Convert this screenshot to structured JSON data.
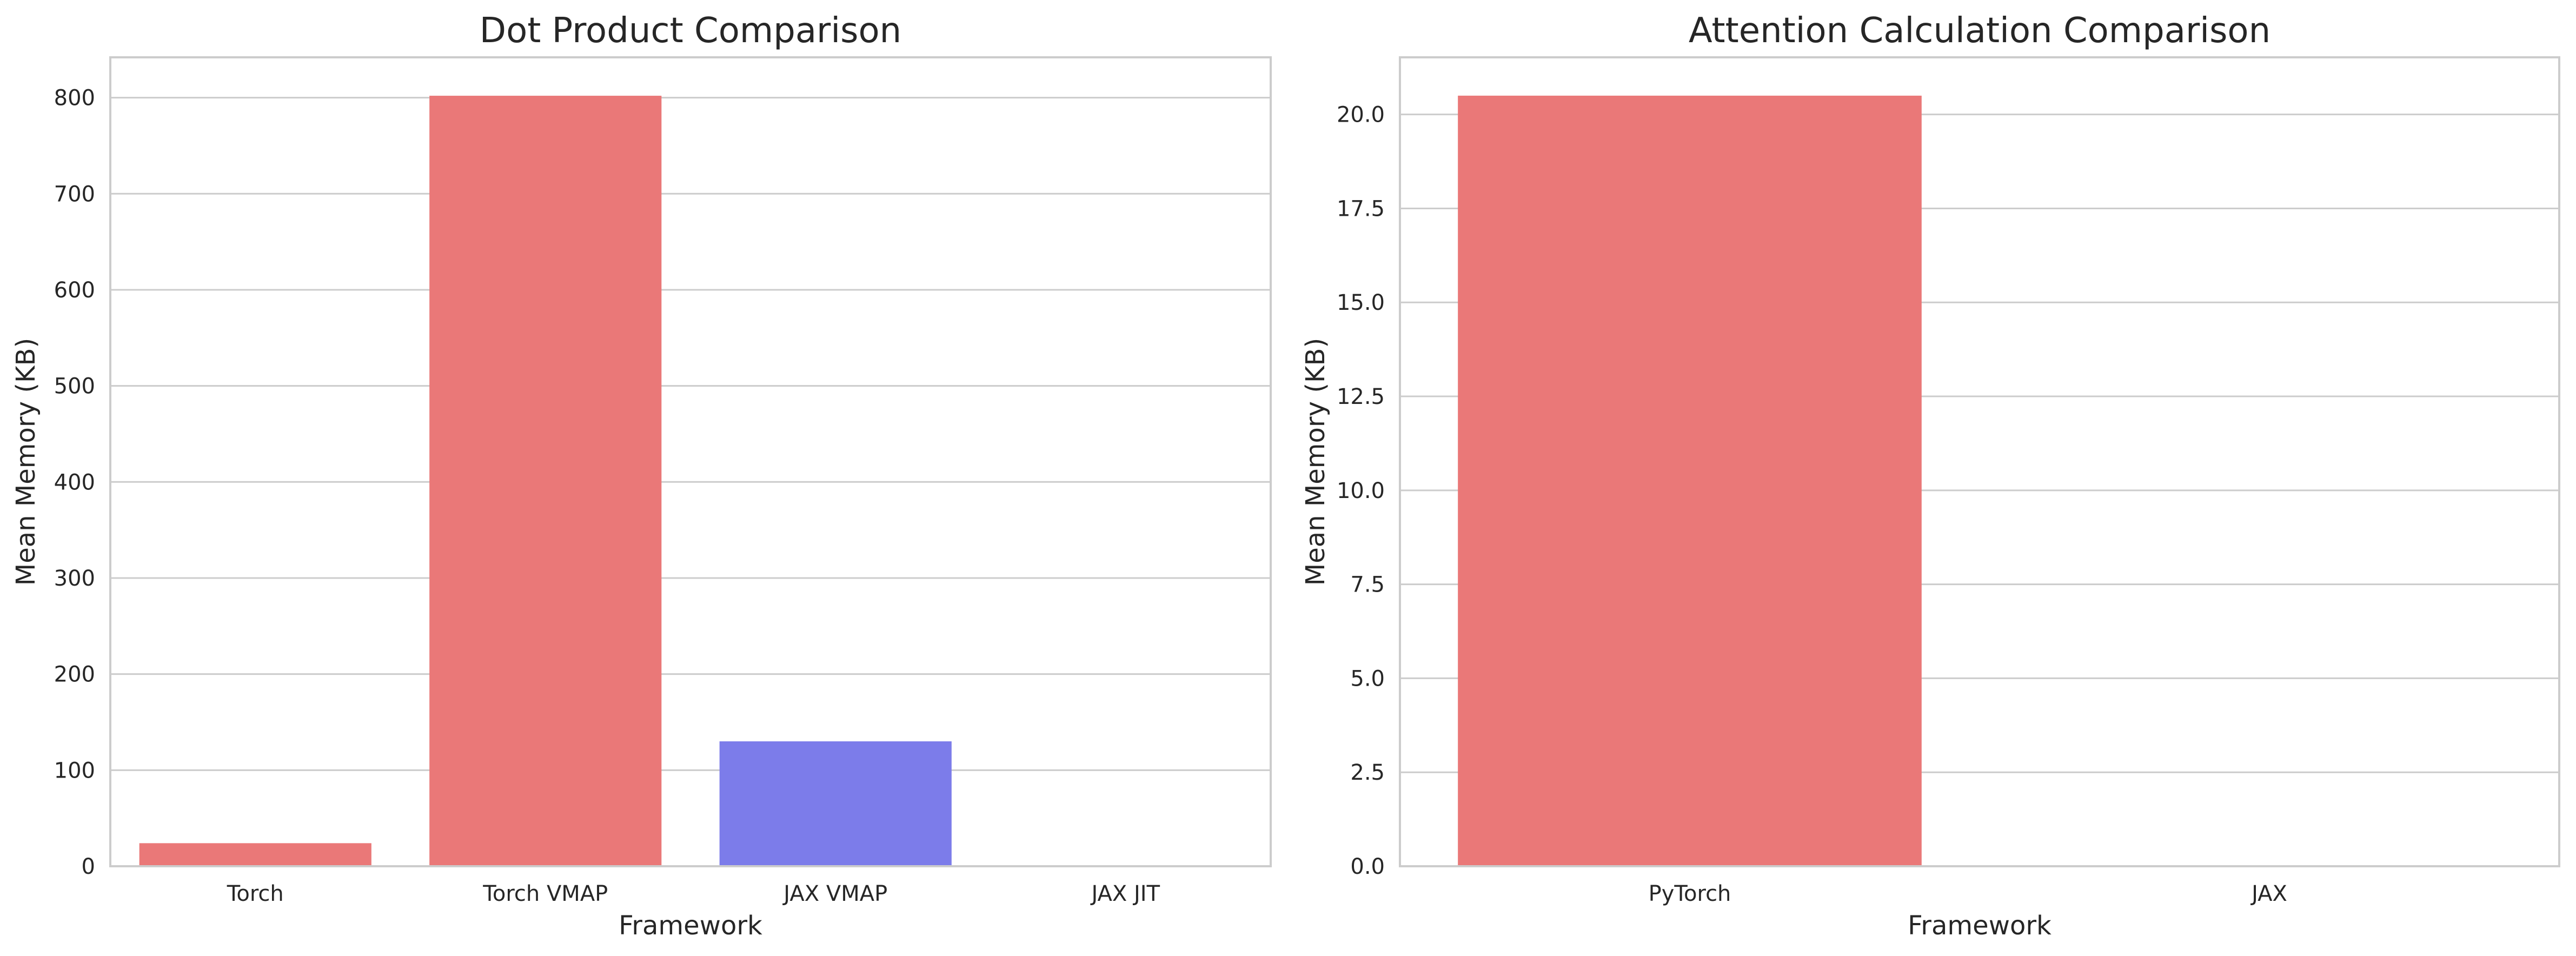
{
  "colors": {
    "torch": "#ea7878",
    "jax": "#7c7cea",
    "grid": "#cccccc",
    "spine": "#cccccc",
    "text": "#262626"
  },
  "chart_data": [
    {
      "type": "bar",
      "title": "Dot Product Comparison",
      "xlabel": "Framework",
      "ylabel": "Mean Memory (KB)",
      "categories": [
        "Torch",
        "Torch VMAP",
        "JAX VMAP",
        "JAX JIT"
      ],
      "values": [
        24,
        802,
        130,
        0
      ],
      "bar_colors": [
        "torch",
        "torch",
        "jax",
        "jax"
      ],
      "yticks": [
        "0",
        "100",
        "200",
        "300",
        "400",
        "500",
        "600",
        "700",
        "800"
      ],
      "ytick_values": [
        0,
        100,
        200,
        300,
        400,
        500,
        600,
        700,
        800
      ],
      "ylim": [
        0,
        842
      ],
      "grid": true,
      "grid_axis": "y"
    },
    {
      "type": "bar",
      "title": "Attention Calculation Comparison",
      "xlabel": "Framework",
      "ylabel": "Mean Memory (KB)",
      "categories": [
        "PyTorch",
        "JAX"
      ],
      "values": [
        20.5,
        0
      ],
      "bar_colors": [
        "torch",
        "jax"
      ],
      "yticks": [
        "0.0",
        "2.5",
        "5.0",
        "7.5",
        "10.0",
        "12.5",
        "15.0",
        "17.5",
        "20.0"
      ],
      "ytick_values": [
        0,
        2.5,
        5,
        7.5,
        10,
        12.5,
        15,
        17.5,
        20
      ],
      "ylim": [
        0,
        21.52
      ],
      "grid": true,
      "grid_axis": "y"
    }
  ]
}
